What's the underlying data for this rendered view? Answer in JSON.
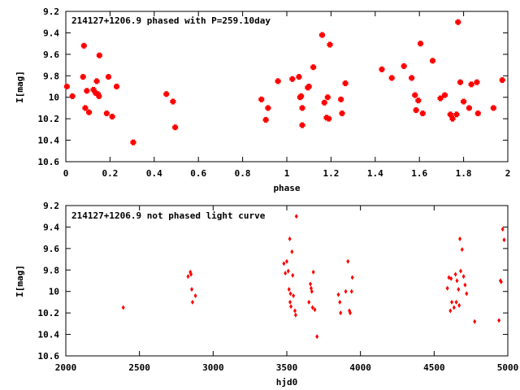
{
  "chart_data": [
    {
      "type": "scatter",
      "title": "214127+1206.9 phased with P=259.10day",
      "xlabel": "phase",
      "ylabel": "I[mag]",
      "xlim": [
        0,
        2
      ],
      "ylim": [
        10.6,
        9.2
      ],
      "y_inverted": true,
      "xticks": [
        "0",
        "0.2",
        "0.4",
        "0.6",
        "0.8",
        "1",
        "1.2",
        "1.4",
        "1.6",
        "1.8",
        "2"
      ],
      "yticks": [
        "9.2",
        "9.4",
        "9.6",
        "9.8",
        "10",
        "10.2",
        "10.4",
        "10.6"
      ],
      "marker_color": "#ff0000",
      "marker": "cross",
      "points": [
        [
          0.005,
          9.9
        ],
        [
          0.03,
          9.99
        ],
        [
          0.078,
          9.81
        ],
        [
          0.082,
          9.52
        ],
        [
          0.088,
          10.1
        ],
        [
          0.095,
          9.94
        ],
        [
          0.105,
          10.14
        ],
        [
          0.125,
          9.93
        ],
        [
          0.135,
          9.96
        ],
        [
          0.14,
          9.85
        ],
        [
          0.145,
          9.97
        ],
        [
          0.15,
          9.99
        ],
        [
          0.152,
          9.61
        ],
        [
          0.185,
          10.15
        ],
        [
          0.193,
          9.81
        ],
        [
          0.21,
          10.18
        ],
        [
          0.23,
          9.9
        ],
        [
          0.305,
          10.42
        ],
        [
          0.455,
          9.97
        ],
        [
          0.485,
          10.04
        ],
        [
          0.495,
          10.28
        ],
        [
          0.885,
          10.02
        ],
        [
          0.905,
          10.21
        ],
        [
          0.915,
          10.1
        ],
        [
          0.96,
          9.85
        ],
        [
          1.025,
          9.83
        ],
        [
          1.055,
          9.81
        ],
        [
          1.06,
          10.0
        ],
        [
          1.065,
          9.99
        ],
        [
          1.07,
          10.1
        ],
        [
          1.07,
          10.26
        ],
        [
          1.095,
          9.91
        ],
        [
          1.1,
          9.9
        ],
        [
          1.12,
          9.72
        ],
        [
          1.16,
          9.42
        ],
        [
          1.17,
          10.05
        ],
        [
          1.18,
          10.19
        ],
        [
          1.185,
          10.0
        ],
        [
          1.19,
          10.2
        ],
        [
          1.195,
          9.51
        ],
        [
          1.245,
          10.02
        ],
        [
          1.25,
          10.15
        ],
        [
          1.265,
          9.87
        ],
        [
          1.43,
          9.74
        ],
        [
          1.475,
          9.82
        ],
        [
          1.53,
          9.71
        ],
        [
          1.565,
          9.82
        ],
        [
          1.58,
          9.98
        ],
        [
          1.585,
          10.12
        ],
        [
          1.595,
          10.03
        ],
        [
          1.605,
          9.5
        ],
        [
          1.615,
          10.15
        ],
        [
          1.66,
          9.66
        ],
        [
          1.695,
          10.01
        ],
        [
          1.715,
          9.98
        ],
        [
          1.74,
          10.16
        ],
        [
          1.75,
          10.2
        ],
        [
          1.768,
          10.16
        ],
        [
          1.775,
          9.3
        ],
        [
          1.785,
          9.86
        ],
        [
          1.8,
          10.04
        ],
        [
          1.825,
          10.1
        ],
        [
          1.835,
          9.88
        ],
        [
          1.86,
          9.86
        ],
        [
          1.865,
          10.15
        ],
        [
          1.935,
          10.1
        ],
        [
          1.975,
          9.84
        ]
      ]
    },
    {
      "type": "scatter",
      "title": "214127+1206.9 not phased light curve",
      "xlabel": "hjd0",
      "ylabel": "I[mag]",
      "xlim": [
        2000,
        5000
      ],
      "ylim": [
        10.6,
        9.2
      ],
      "y_inverted": true,
      "xticks": [
        "2000",
        "2500",
        "3000",
        "3500",
        "4000",
        "4500",
        "5000"
      ],
      "yticks": [
        "9.2",
        "9.4",
        "9.6",
        "9.8",
        "10",
        "10.2",
        "10.4",
        "10.6"
      ],
      "marker_color": "#ff0000",
      "marker": "diamond",
      "points": [
        [
          2390,
          10.15
        ],
        [
          2830,
          9.86
        ],
        [
          2845,
          9.82
        ],
        [
          2850,
          9.84
        ],
        [
          2855,
          9.98
        ],
        [
          2860,
          10.1
        ],
        [
          2880,
          10.04
        ],
        [
          3480,
          9.74
        ],
        [
          3490,
          9.83
        ],
        [
          3500,
          9.72
        ],
        [
          3510,
          9.81
        ],
        [
          3515,
          9.98
        ],
        [
          3520,
          9.51
        ],
        [
          3522,
          10.1
        ],
        [
          3525,
          10.02
        ],
        [
          3528,
          10.14
        ],
        [
          3535,
          9.63
        ],
        [
          3540,
          9.85
        ],
        [
          3545,
          10.04
        ],
        [
          3555,
          10.18
        ],
        [
          3560,
          10.22
        ],
        [
          3565,
          9.3
        ],
        [
          3650,
          10.1
        ],
        [
          3660,
          9.93
        ],
        [
          3665,
          9.97
        ],
        [
          3670,
          10.0
        ],
        [
          3675,
          10.15
        ],
        [
          3680,
          9.82
        ],
        [
          3690,
          10.17
        ],
        [
          3705,
          10.42
        ],
        [
          3850,
          10.03
        ],
        [
          3860,
          10.1
        ],
        [
          3865,
          10.2
        ],
        [
          3900,
          10.0
        ],
        [
          3915,
          9.72
        ],
        [
          3925,
          10.18
        ],
        [
          3930,
          10.2
        ],
        [
          3940,
          10.0
        ],
        [
          3945,
          9.87
        ],
        [
          4590,
          9.97
        ],
        [
          4600,
          9.87
        ],
        [
          4610,
          10.18
        ],
        [
          4615,
          9.88
        ],
        [
          4620,
          10.1
        ],
        [
          4635,
          10.15
        ],
        [
          4645,
          9.84
        ],
        [
          4650,
          10.1
        ],
        [
          4655,
          9.9
        ],
        [
          4665,
          9.98
        ],
        [
          4670,
          10.13
        ],
        [
          4675,
          9.51
        ],
        [
          4680,
          9.81
        ],
        [
          4690,
          9.61
        ],
        [
          4700,
          9.86
        ],
        [
          4710,
          9.94
        ],
        [
          4720,
          10.02
        ],
        [
          4775,
          10.28
        ],
        [
          4940,
          10.27
        ],
        [
          4950,
          9.9
        ],
        [
          4955,
          9.91
        ],
        [
          4965,
          9.42
        ],
        [
          4975,
          9.52
        ]
      ]
    }
  ]
}
